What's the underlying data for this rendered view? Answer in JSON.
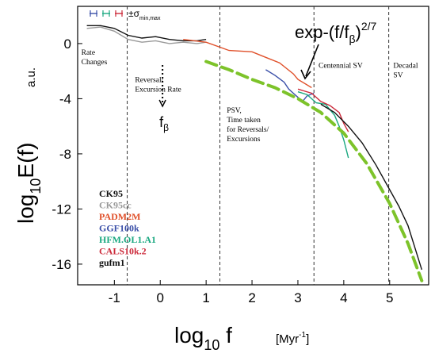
{
  "chart_data": {
    "type": "line",
    "x_axis": {
      "label_base": "log",
      "label_sub": "10",
      "label_var": " f",
      "label_unit": "[Myr",
      "label_unit_sup": "-1",
      "label_unit_close": "]",
      "xlim": [
        -1.8,
        5.85
      ],
      "ticks": [
        -1,
        0,
        1,
        2,
        3,
        4,
        5
      ]
    },
    "y_axis": {
      "label_base": "log",
      "label_sub": "10",
      "label_var": "E(f)",
      "label_unit": "a.u.",
      "ylim": [
        -17.5,
        2.7
      ],
      "ticks": [
        0,
        -4,
        -8,
        -12,
        -16
      ]
    },
    "vertical_dividers": [
      -0.72,
      1.3,
      3.35,
      4.98
    ],
    "region_labels": [
      {
        "lines": [
          "Rate",
          "Changes"
        ],
        "x": -1.72,
        "y": -0.8
      },
      {
        "lines": [
          "Reversal/",
          "Excursion Rate"
        ],
        "x": -0.55,
        "y": -2.8
      },
      {
        "lines": [
          "PSV,",
          "Time taken",
          "for Reversals/",
          "Excursions"
        ],
        "x": 1.45,
        "y": -5.0
      },
      {
        "lines": [
          "Centennial SV"
        ],
        "x": 3.45,
        "y": -1.75
      },
      {
        "lines": [
          "Decadal",
          "SV"
        ],
        "x": 5.08,
        "y": -1.75
      }
    ],
    "f_beta": {
      "label": "f",
      "sub": "β",
      "x": 0.05
    },
    "fit_label": {
      "base": "exp-(f/f",
      "sub": "β",
      "close": ")",
      "sup": "2/7"
    },
    "error_legend": {
      "label": "±σ",
      "sub": "min,max"
    },
    "fit_curve": {
      "name": "exp-(f/fβ)^(2/7)",
      "color": "#7dc32a",
      "x": [
        1.0,
        1.5,
        2.0,
        2.5,
        3.0,
        3.5,
        4.0,
        4.5,
        5.0,
        5.4,
        5.7
      ],
      "y": [
        -1.3,
        -1.9,
        -2.6,
        -3.2,
        -4.0,
        -5.0,
        -6.5,
        -8.7,
        -11.6,
        -14.5,
        -17.2
      ]
    },
    "series": [
      {
        "name": "CK95",
        "color": "#111111",
        "x": [
          -1.6,
          -1.3,
          -1.0,
          -0.7,
          -0.4,
          -0.1,
          0.2,
          0.5,
          0.8,
          1.0
        ],
        "y": [
          1.3,
          1.3,
          1.1,
          0.6,
          0.4,
          0.5,
          0.3,
          0.2,
          0.2,
          0.3
        ]
      },
      {
        "name": "CK95cc",
        "color": "#999999",
        "x": [
          -1.6,
          -1.3,
          -1.0,
          -0.7,
          -0.4,
          -0.1,
          0.2,
          0.5,
          0.8,
          1.0
        ],
        "y": [
          1.1,
          1.2,
          0.9,
          0.3,
          0.1,
          0.2,
          0.0,
          0.1,
          0.0,
          0.1
        ]
      },
      {
        "name": "PADM2M",
        "color": "#e0502a",
        "x": [
          0.5,
          1.0,
          1.5,
          2.0,
          2.3,
          2.6,
          2.9,
          3.0,
          3.3
        ],
        "y": [
          0.3,
          0.1,
          -0.5,
          -0.6,
          -1.0,
          -1.4,
          -2.2,
          -2.6,
          -3.2
        ]
      },
      {
        "name": "GGF100k",
        "color": "#3a4fa8",
        "x": [
          2.3,
          2.5,
          2.7,
          2.8,
          2.9,
          3.0,
          3.1,
          3.2,
          3.35
        ],
        "y": [
          -1.9,
          -2.3,
          -2.8,
          -3.3,
          -3.6,
          -3.9,
          -4.2,
          -3.8,
          -3.6
        ]
      },
      {
        "name": "HFM.OL1.A1",
        "color": "#1aa880",
        "x": [
          3.0,
          3.2,
          3.4,
          3.6,
          3.8,
          3.9,
          4.0,
          4.1
        ],
        "y": [
          -3.5,
          -3.7,
          -4.3,
          -4.4,
          -5.2,
          -6.0,
          -7.0,
          -8.3
        ]
      },
      {
        "name": "CALS10k.2",
        "color": "#cc2a3a",
        "x": [
          3.0,
          3.3,
          3.5,
          3.7,
          3.9,
          4.0,
          4.1
        ],
        "y": [
          -3.3,
          -3.6,
          -4.2,
          -4.5,
          -5.0,
          -5.8,
          -6.4
        ]
      },
      {
        "name": "gufm1",
        "color": "#111111",
        "x": [
          3.5,
          3.8,
          4.1,
          4.4,
          4.7,
          5.0,
          5.2,
          5.4,
          5.55,
          5.7
        ],
        "y": [
          -4.4,
          -5.0,
          -6.0,
          -7.2,
          -8.8,
          -10.6,
          -11.8,
          -13.2,
          -14.8,
          -16.4
        ]
      }
    ]
  }
}
